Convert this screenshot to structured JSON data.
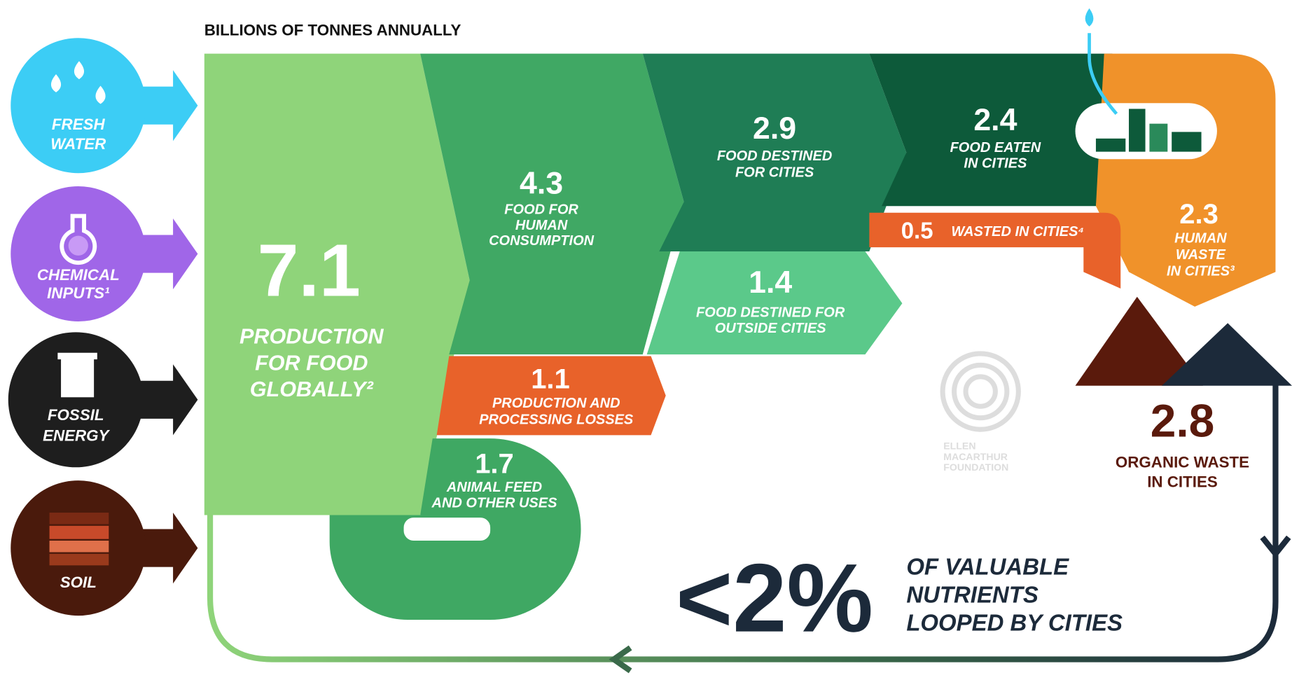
{
  "header": {
    "title": "BILLIONS OF TONNES ANNUALLY"
  },
  "inputs": [
    {
      "label": [
        "FRESH",
        "WATER"
      ]
    },
    {
      "label": [
        "CHEMICAL",
        "INPUTS¹"
      ]
    },
    {
      "label": [
        "FOSSIL",
        "ENERGY"
      ]
    },
    {
      "label": [
        "SOIL"
      ]
    }
  ],
  "flows": [
    {
      "value": "7.1",
      "label": [
        "PRODUCTION",
        "FOR FOOD",
        "GLOBALLY²"
      ]
    },
    {
      "value": "4.3",
      "label": [
        "FOOD FOR",
        "HUMAN",
        "CONSUMPTION"
      ]
    },
    {
      "value": "1.1",
      "label": [
        "PRODUCTION AND",
        "PROCESSING LOSSES"
      ]
    },
    {
      "value": "1.7",
      "label": [
        "ANIMAL FEED",
        "AND OTHER USES"
      ]
    },
    {
      "value": "2.9",
      "label": [
        "FOOD DESTINED",
        "FOR CITIES"
      ]
    },
    {
      "value": "1.4",
      "label": [
        "FOOD DESTINED FOR",
        "OUTSIDE CITIES"
      ]
    },
    {
      "value": "2.4",
      "label": [
        "FOOD EATEN",
        "IN CITIES"
      ]
    },
    {
      "value": "0.5",
      "label": [
        "WASTED IN CITIES⁴"
      ]
    },
    {
      "value": "2.3",
      "label": [
        "HUMAN",
        "WASTE",
        "IN CITIES³"
      ]
    }
  ],
  "organic_waste": {
    "value": "2.8",
    "label": [
      "ORGANIC WASTE",
      "IN CITIES"
    ]
  },
  "summary": {
    "value": "<2%",
    "label": [
      "OF VALUABLE",
      "NUTRIENTS",
      "LOOPED BY CITIES"
    ]
  },
  "logo": {
    "label": [
      "ELLEN",
      "MACARTHUR",
      "FOUNDATION"
    ]
  }
}
